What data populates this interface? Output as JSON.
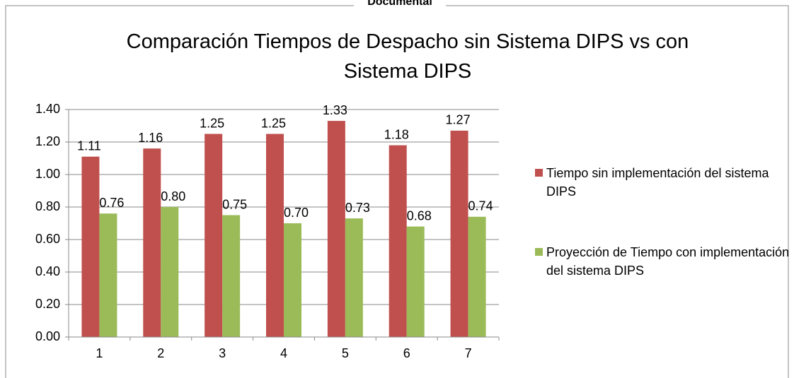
{
  "header": "Documental",
  "chart_data": {
    "type": "bar",
    "title": "Comparación Tiempos de Despacho sin Sistema DIPS vs con Sistema DIPS",
    "categories": [
      "1",
      "2",
      "3",
      "4",
      "5",
      "6",
      "7"
    ],
    "series": [
      {
        "name": "Tiempo sin implementación del sistema DIPS",
        "color": "#c0504d",
        "values": [
          1.11,
          1.16,
          1.25,
          1.25,
          1.33,
          1.18,
          1.27
        ],
        "value_labels": [
          "1.11",
          "1.16",
          "1.25",
          "1.25",
          "1.33",
          "1.18",
          "1.27"
        ]
      },
      {
        "name": "Proyección de Tiempo con implementación del sistema DIPS",
        "color": "#9bbb59",
        "values": [
          0.76,
          0.8,
          0.75,
          0.7,
          0.73,
          0.68,
          0.74
        ],
        "value_labels": [
          "0.76",
          "0.80",
          "0.75",
          "0.70",
          "0.73",
          "0.68",
          "0.74"
        ]
      }
    ],
    "ylim": [
      0,
      1.4
    ],
    "yticks": [
      {
        "value": 0,
        "label": "0.00"
      },
      {
        "value": 0.2,
        "label": "0.20"
      },
      {
        "value": 0.4,
        "label": "0.40"
      },
      {
        "value": 0.6,
        "label": "0.60"
      },
      {
        "value": 0.8,
        "label": "0.80"
      },
      {
        "value": 1,
        "label": "1.00"
      },
      {
        "value": 1.2,
        "label": "1.20"
      },
      {
        "value": 1.4,
        "label": "1.40"
      }
    ],
    "grid": true,
    "legend": "right"
  }
}
